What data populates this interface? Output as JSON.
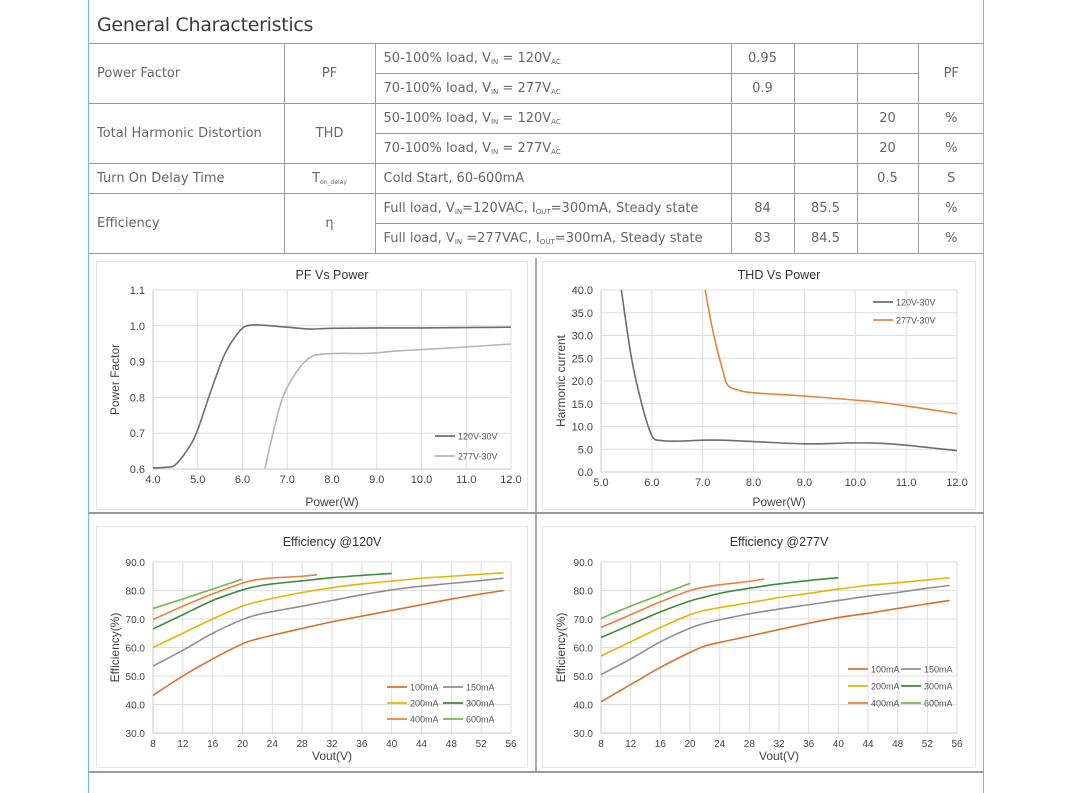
{
  "section_title": "General Characteristics",
  "table": {
    "rows": [
      {
        "param": "Power Factor",
        "symbol": "PF",
        "conditions": [
          {
            "pre": "50-100% load, V",
            "sub1": "IN",
            "mid": " = 120V",
            "sub2": "AC",
            "post": "",
            "min": "0.95",
            "typ": "",
            "max": ""
          },
          {
            "pre": "70-100% load, V",
            "sub1": "IN",
            "mid": " = 277V",
            "sub2": "AC",
            "post": "",
            "min": "0.9",
            "typ": "",
            "max": ""
          }
        ],
        "unit": "PF"
      },
      {
        "param": "Total Harmonic Distortion",
        "symbol": "THD",
        "conditions": [
          {
            "pre": "50-100% load, V",
            "sub1": "IN",
            "mid": " = 120V",
            "sub2": "AC",
            "post": "",
            "min": "",
            "typ": "",
            "max": "20",
            "unit": "%"
          },
          {
            "pre": "70-100% load, V",
            "sub1": "IN",
            "mid": " = 277V",
            "sub2": "AC",
            "post": "",
            "min": "",
            "typ": "",
            "max": "20",
            "unit": "%"
          }
        ]
      },
      {
        "param": "Turn On Delay Time",
        "symbol": "T",
        "symbol_sub": "on_delay",
        "conditions": [
          {
            "text": "Cold Start, 60-600mA",
            "min": "",
            "typ": "",
            "max": "0.5",
            "unit": "S"
          }
        ]
      },
      {
        "param": "Efficiency",
        "symbol": "η",
        "conditions": [
          {
            "pre": "Full load, V",
            "sub1": "IN",
            "mid": "=120VAC, I",
            "sub2": "OUT",
            "post": "=300mA, Steady state",
            "min": "84",
            "typ": "85.5",
            "max": "",
            "unit": "%"
          },
          {
            "pre": "Full load, V",
            "sub1": "IN",
            "mid": " =277VAC, I",
            "sub2": "OUT",
            "post": "=300mA, Steady state",
            "min": "83",
            "typ": "84.5",
            "max": "",
            "unit": "%"
          }
        ]
      }
    ]
  },
  "chart_data": [
    {
      "type": "line",
      "title": "PF Vs Power",
      "xlabel": "Power(W)",
      "ylabel": "Power Factor",
      "xlim": [
        4.0,
        12.0
      ],
      "ylim": [
        0.6,
        1.1
      ],
      "xticks": [
        "4.0",
        "5.0",
        "6.0",
        "7.0",
        "8.0",
        "9.0",
        "10.0",
        "11.0",
        "12.0"
      ],
      "yticks": [
        "0.6",
        "0.7",
        "0.8",
        "0.9",
        "1.0",
        "1.1"
      ],
      "legend": "bottom-right",
      "grid": true,
      "series": [
        {
          "name": "120V-30V",
          "color": "#6d6d6d",
          "x": [
            4.0,
            4.3,
            4.5,
            4.8,
            5.0,
            5.3,
            5.6,
            5.9,
            6.1,
            6.4,
            7.0,
            7.5,
            8.0,
            9.0,
            10.0,
            11.0,
            12.0
          ],
          "y": [
            0.603,
            0.605,
            0.612,
            0.66,
            0.71,
            0.82,
            0.92,
            0.98,
            1.0,
            1.002,
            0.996,
            0.991,
            0.993,
            0.994,
            0.994,
            0.995,
            0.996
          ]
        },
        {
          "name": "277V-30V",
          "color": "#b5b5b5",
          "x": [
            6.5,
            6.7,
            6.9,
            7.2,
            7.5,
            7.8,
            8.2,
            8.8,
            9.5,
            10.5,
            11.5,
            12.0
          ],
          "y": [
            0.6,
            0.71,
            0.8,
            0.87,
            0.911,
            0.921,
            0.923,
            0.923,
            0.93,
            0.937,
            0.945,
            0.949
          ]
        }
      ]
    },
    {
      "type": "line",
      "title": "THD Vs Power",
      "xlabel": "Power(W)",
      "ylabel": "Harmonic current",
      "xlim": [
        5.0,
        12.0
      ],
      "ylim": [
        0.0,
        40.0
      ],
      "xticks": [
        "5.0",
        "6.0",
        "7.0",
        "8.0",
        "9.0",
        "10.0",
        "11.0",
        "12.0"
      ],
      "yticks": [
        "0.0",
        "5.0",
        "10.0",
        "15.0",
        "20.0",
        "25.0",
        "30.0",
        "35.0",
        "40.0"
      ],
      "legend": "top-right",
      "grid": true,
      "series": [
        {
          "name": "120V-30V",
          "color": "#6d6d6d",
          "x": [
            5.4,
            5.6,
            5.8,
            6.0,
            6.2,
            6.6,
            7.0,
            7.4,
            8.0,
            9.0,
            10.0,
            10.5,
            11.0,
            11.5,
            12.0
          ],
          "y": [
            40.0,
            25.0,
            15.0,
            8.0,
            6.9,
            6.8,
            7.0,
            7.0,
            6.7,
            6.2,
            6.4,
            6.3,
            5.9,
            5.3,
            4.7
          ]
        },
        {
          "name": "277V-30V",
          "color": "#e8843c",
          "x": [
            7.05,
            7.2,
            7.4,
            7.5,
            7.7,
            8.0,
            9.0,
            10.0,
            10.5,
            11.0,
            11.5,
            12.0
          ],
          "y": [
            40.0,
            31.0,
            22.0,
            19.0,
            18.0,
            17.4,
            16.7,
            15.8,
            15.3,
            14.5,
            13.7,
            12.8
          ]
        }
      ]
    },
    {
      "type": "line",
      "title": "Efficiency @120V",
      "xlabel": "Vout(V)",
      "ylabel": "Efficiency(%)",
      "xlim": [
        8,
        56
      ],
      "ylim": [
        30.0,
        90.0
      ],
      "xticks": [
        "8",
        "12",
        "16",
        "20",
        "24",
        "28",
        "32",
        "36",
        "40",
        "44",
        "48",
        "52",
        "56"
      ],
      "yticks": [
        "30.0",
        "40.0",
        "50.0",
        "60.0",
        "70.0",
        "80.0",
        "90.0"
      ],
      "legend": "bottom-right",
      "grid": true,
      "series": [
        {
          "name": "100mA",
          "color": "#d9702c",
          "x": [
            8,
            12,
            16,
            20,
            22,
            24,
            28,
            32,
            36,
            40,
            44,
            48,
            52,
            55
          ],
          "y": [
            43.2,
            50.0,
            56.0,
            61.3,
            63.0,
            64.3,
            66.7,
            69.0,
            71.0,
            73.0,
            75.0,
            77.0,
            78.8,
            80.0
          ]
        },
        {
          "name": "150mA",
          "color": "#8f8f8f",
          "x": [
            8,
            12,
            16,
            20,
            22,
            24,
            28,
            32,
            36,
            40,
            44,
            48,
            52,
            55
          ],
          "y": [
            53.5,
            59.0,
            65.0,
            69.8,
            71.5,
            72.6,
            74.5,
            76.5,
            78.5,
            80.2,
            81.5,
            82.5,
            83.5,
            84.3
          ]
        },
        {
          "name": "200mA",
          "color": "#e8b400",
          "x": [
            8,
            12,
            16,
            20,
            22,
            24,
            28,
            32,
            36,
            40,
            44,
            48,
            52,
            55
          ],
          "y": [
            60.0,
            65.0,
            70.0,
            74.5,
            76.0,
            77.2,
            79.3,
            81.0,
            82.3,
            83.3,
            84.3,
            85.0,
            85.7,
            86.2
          ]
        },
        {
          "name": "300mA",
          "color": "#3c8a3c",
          "x": [
            8,
            12,
            16,
            20,
            22,
            24,
            28,
            32,
            36,
            40
          ],
          "y": [
            66.5,
            71.5,
            76.5,
            80.2,
            81.5,
            82.3,
            83.4,
            84.5,
            85.3,
            86.0
          ]
        },
        {
          "name": "400mA",
          "color": "#f07e3a",
          "x": [
            8,
            12,
            16,
            20,
            22,
            24,
            28,
            30
          ],
          "y": [
            69.8,
            74.5,
            78.8,
            82.6,
            83.8,
            84.4,
            85.0,
            85.5
          ]
        },
        {
          "name": "600mA",
          "color": "#6fb84a",
          "x": [
            8,
            12,
            16,
            20
          ],
          "y": [
            73.7,
            77.0,
            80.5,
            84.0
          ]
        }
      ]
    },
    {
      "type": "line",
      "title": "Efficiency @277V",
      "xlabel": "Vout(V)",
      "ylabel": "Efficiency(%)",
      "xlim": [
        8,
        56
      ],
      "ylim": [
        30.0,
        90.0
      ],
      "xticks": [
        "8",
        "12",
        "16",
        "20",
        "24",
        "28",
        "32",
        "36",
        "40",
        "44",
        "48",
        "52",
        "56"
      ],
      "yticks": [
        "30.0",
        "40.0",
        "50.0",
        "60.0",
        "70.0",
        "80.0",
        "90.0"
      ],
      "legend": "bottom-right",
      "grid": true,
      "series": [
        {
          "name": "100mA",
          "color": "#d9702c",
          "x": [
            8,
            12,
            16,
            20,
            22,
            24,
            28,
            32,
            36,
            40,
            44,
            48,
            52,
            55
          ],
          "y": [
            41.0,
            47.0,
            53.0,
            58.3,
            60.5,
            61.8,
            64.0,
            66.3,
            68.5,
            70.5,
            72.0,
            73.7,
            75.3,
            76.5
          ]
        },
        {
          "name": "150mA",
          "color": "#8f8f8f",
          "x": [
            8,
            12,
            16,
            20,
            22,
            24,
            28,
            32,
            36,
            40,
            44,
            48,
            52,
            55
          ],
          "y": [
            50.5,
            56.0,
            62.0,
            66.8,
            68.5,
            69.7,
            71.8,
            73.5,
            75.0,
            76.5,
            78.0,
            79.3,
            80.8,
            81.8
          ]
        },
        {
          "name": "200mA",
          "color": "#e8b400",
          "x": [
            8,
            12,
            16,
            20,
            22,
            24,
            28,
            32,
            36,
            40,
            44,
            48,
            52,
            55
          ],
          "y": [
            57.0,
            62.0,
            67.0,
            71.5,
            73.0,
            74.0,
            75.7,
            77.5,
            79.0,
            80.5,
            81.8,
            82.7,
            83.7,
            84.5
          ]
        },
        {
          "name": "300mA",
          "color": "#3c8a3c",
          "x": [
            8,
            12,
            16,
            20,
            22,
            24,
            28,
            32,
            36,
            40
          ],
          "y": [
            63.5,
            68.0,
            72.5,
            76.3,
            77.7,
            79.0,
            80.8,
            82.3,
            83.5,
            84.5
          ]
        },
        {
          "name": "400mA",
          "color": "#f07e3a",
          "x": [
            8,
            12,
            16,
            20,
            22,
            24,
            28,
            30
          ],
          "y": [
            67.0,
            71.5,
            76.0,
            80.0,
            81.2,
            82.0,
            83.2,
            84.0
          ]
        },
        {
          "name": "600mA",
          "color": "#6fb84a",
          "x": [
            8,
            12,
            16,
            20
          ],
          "y": [
            70.2,
            74.5,
            78.5,
            82.5
          ]
        }
      ]
    }
  ]
}
